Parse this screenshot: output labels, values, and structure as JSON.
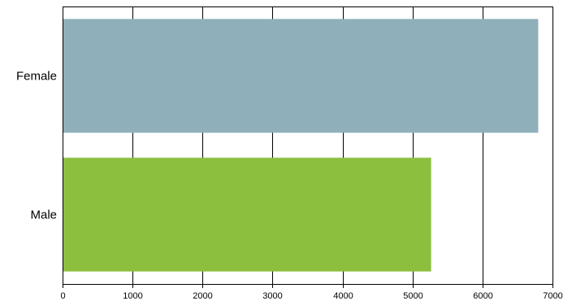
{
  "chart_data": {
    "type": "bar",
    "orientation": "horizontal",
    "categories": [
      "Female",
      "Male"
    ],
    "values": [
      6790,
      5260
    ],
    "colors": [
      "#8fb0ba",
      "#8dbf3f"
    ],
    "xlim": [
      0,
      7000
    ],
    "xticks": [
      0,
      1000,
      2000,
      3000,
      4000,
      5000,
      6000,
      7000
    ],
    "grid": true,
    "legend": "none",
    "title": "",
    "xlabel": "",
    "ylabel": ""
  }
}
